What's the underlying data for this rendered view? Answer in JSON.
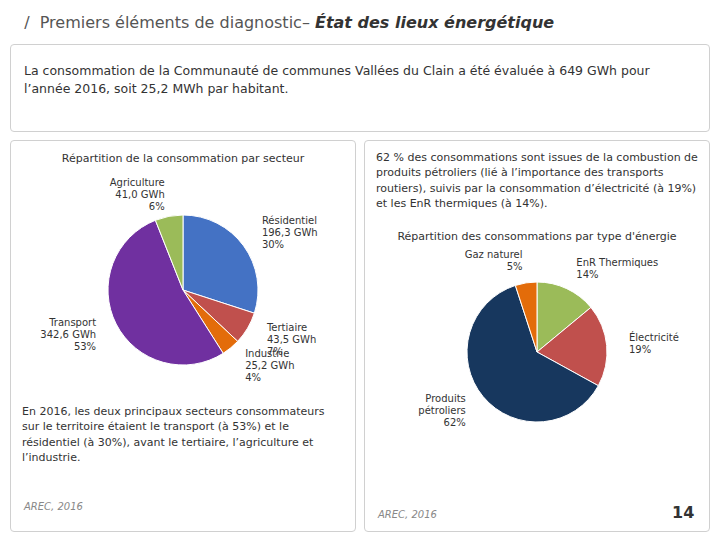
{
  "chart_data": [
    {
      "type": "pie",
      "title": "Répartition de la consommation par secteur",
      "categories": [
        "Résidentiel\n196,3 GWh\n30%",
        "Tertiaire\n43,5 GWh\n7%",
        "Industrie\n25,2 GWh\n4%",
        "Transport\n342,6 GWh\n53%",
        "Agriculture\n41,0 GWh\n6%"
      ],
      "values": [
        30,
        7,
        4,
        53,
        6
      ],
      "colors": [
        "#4472C4",
        "#C0504D",
        "#E36C0A",
        "#7030A0",
        "#9BBB59"
      ],
      "annotations": [
        "  /  Premiers éléments de diagnostic– ",
        "État des lieux énergétique",
        "La consommation de la Communauté de communes Vallées du Clain a été évaluée à 649 GWh pour l’année 2016, soit 25,2 MWh par habitant.",
        "En 2016, les deux principaux secteurs consommateurs sur le territoire étaient le transport (à 53%) et le résidentiel (à 30%), avant le tertiaire, l’agriculture et l’industrie.",
        "AREC, 2016"
      ]
    },
    {
      "type": "pie",
      "title": "Répartition des consommations par type d'énergie",
      "categories": [
        "EnR Thermiques\n14%",
        "Électricité\n19%",
        "Produits\npétroliers\n62%",
        "Gaz naturel\n5%"
      ],
      "values": [
        14,
        19,
        62,
        5
      ],
      "colors": [
        "#9BBB59",
        "#C0504D",
        "#17375E",
        "#E36C0A"
      ],
      "annotations": [
        "62 % des consommations sont issues de la combustion de produits pétroliers (lié à l’importance des transports routiers), suivis par la consommation d’électricité (à 19%) et les EnR thermiques (à 14%).",
        "AREC, 2016",
        "14"
      ]
    }
  ]
}
